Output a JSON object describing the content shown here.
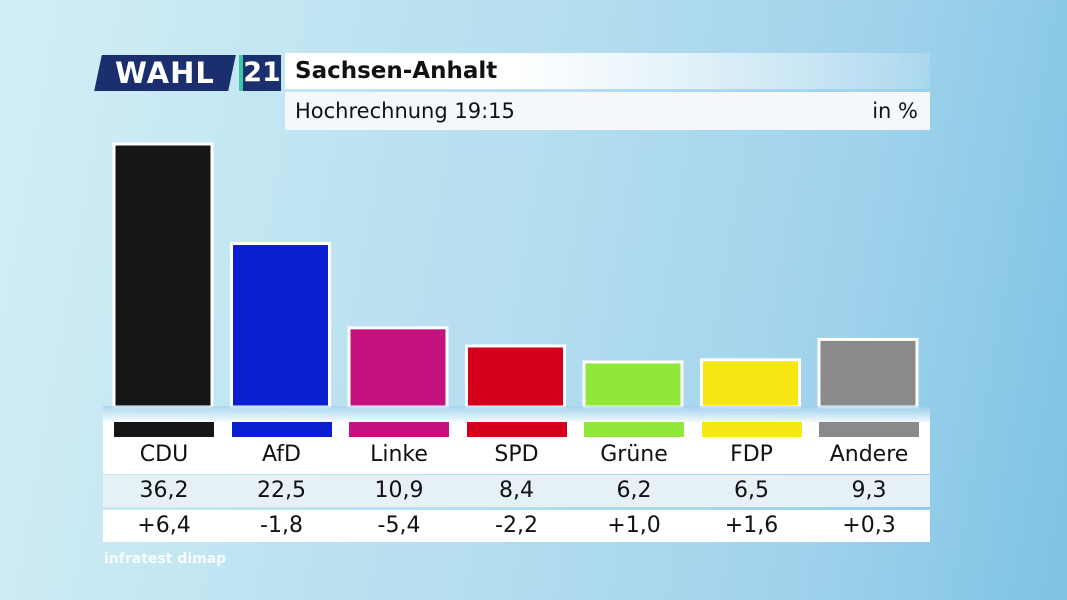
{
  "logo": {
    "brand": "WAHL",
    "number": "21"
  },
  "header": {
    "title": "Sachsen-Anhalt",
    "subtitle": "Hochrechnung 19:15",
    "unit": "in %"
  },
  "source": "infratest dimap",
  "colors": {
    "navy": "#1b2f6e",
    "accent": "#38c8a6"
  },
  "chart_data": {
    "type": "bar",
    "categories": [
      "CDU",
      "AfD",
      "Linke",
      "SPD",
      "Grüne",
      "FDP",
      "Andere"
    ],
    "values": [
      36.2,
      22.5,
      10.9,
      8.4,
      6.2,
      6.5,
      9.3
    ],
    "value_labels": [
      "36,2",
      "22,5",
      "10,9",
      "8,4",
      "6,2",
      "6,5",
      "9,3"
    ],
    "changes": [
      "+6,4",
      "-1,8",
      "-5,4",
      "-2,2",
      "+1,0",
      "+1,6",
      "+0,3"
    ],
    "colors": [
      "#161616",
      "#0a1fd0",
      "#c4137f",
      "#d2001a",
      "#8fe83a",
      "#f5e614",
      "#8a8a8a"
    ],
    "title": "Sachsen-Anhalt",
    "subtitle": "Hochrechnung 19:15",
    "unit": "in %",
    "ylim": [
      0,
      36.2
    ],
    "grid": false,
    "legend": "none"
  }
}
